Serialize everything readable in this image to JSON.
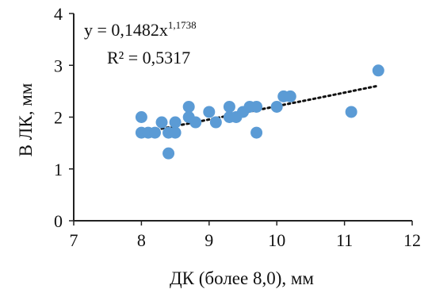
{
  "chart_data": {
    "type": "scatter",
    "xlabel": "ДК (более 8,0), мм",
    "ylabel": "В ЛК, мм",
    "xlim": [
      7,
      12
    ],
    "ylim": [
      0,
      4
    ],
    "x_ticks": [
      "7",
      "8",
      "9",
      "10",
      "11",
      "12"
    ],
    "y_ticks": [
      "0",
      "1",
      "2",
      "3",
      "4"
    ],
    "grid": false,
    "series": [
      {
        "points": [
          [
            8.0,
            2.0
          ],
          [
            8.0,
            1.7
          ],
          [
            8.1,
            1.7
          ],
          [
            8.2,
            1.7
          ],
          [
            8.3,
            1.9
          ],
          [
            8.4,
            1.7
          ],
          [
            8.4,
            1.3
          ],
          [
            8.5,
            1.7
          ],
          [
            8.5,
            1.9
          ],
          [
            8.7,
            2.2
          ],
          [
            8.7,
            2.0
          ],
          [
            8.8,
            1.9
          ],
          [
            9.0,
            2.1
          ],
          [
            9.1,
            1.9
          ],
          [
            9.3,
            2.2
          ],
          [
            9.3,
            2.0
          ],
          [
            9.4,
            2.0
          ],
          [
            9.5,
            2.1
          ],
          [
            9.6,
            2.2
          ],
          [
            9.7,
            2.2
          ],
          [
            9.7,
            1.7
          ],
          [
            10.0,
            2.2
          ],
          [
            10.1,
            2.4
          ],
          [
            10.2,
            2.4
          ],
          [
            11.1,
            2.1
          ],
          [
            11.5,
            2.9
          ]
        ],
        "color": "#5b9bd5"
      }
    ],
    "trendline": {
      "kind": "power",
      "a": 0.1482,
      "b": 1.1738,
      "x_range": [
        8.0,
        11.5
      ],
      "style": "dotted",
      "color": "#111111"
    },
    "equation": {
      "prefix": "y = 0,1482x",
      "exponent": "1,1738",
      "r2": "R² = 0,5317"
    }
  }
}
